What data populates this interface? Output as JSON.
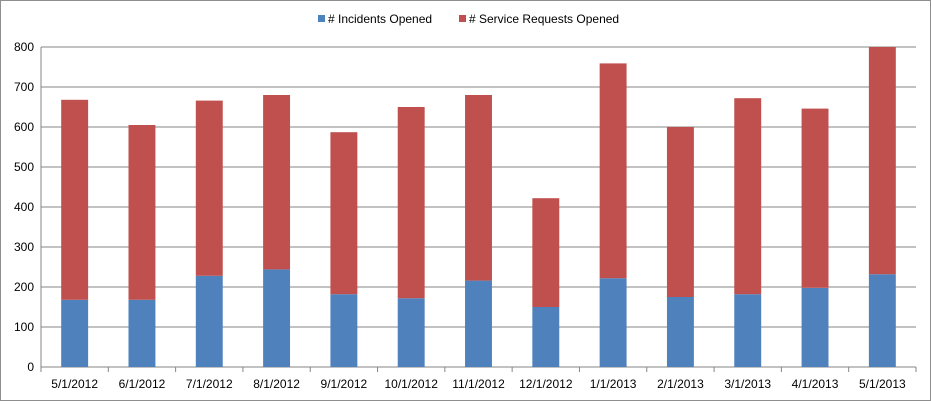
{
  "chart_data": {
    "type": "bar",
    "stacked": true,
    "categories": [
      "5/1/2012",
      "6/1/2012",
      "7/1/2012",
      "8/1/2012",
      "9/1/2012",
      "10/1/2012",
      "11/1/2012",
      "12/1/2012",
      "1/1/2013",
      "2/1/2013",
      "3/1/2013",
      "4/1/2013",
      "5/1/2013"
    ],
    "series": [
      {
        "name": "# Incidents Opened",
        "color": "#4f81bd",
        "values": [
          168,
          168,
          228,
          244,
          182,
          172,
          216,
          150,
          222,
          175,
          182,
          198,
          232
        ]
      },
      {
        "name": "# Service Requests Opened",
        "color": "#c0504d",
        "values": [
          500,
          437,
          438,
          436,
          405,
          478,
          464,
          272,
          537,
          425,
          490,
          448,
          568
        ]
      }
    ],
    "ylim": [
      0,
      800
    ],
    "yticks": [
      0,
      100,
      200,
      300,
      400,
      500,
      600,
      700,
      800
    ],
    "grid": true,
    "legend": "top-center",
    "title": "",
    "xlabel": "",
    "ylabel": ""
  }
}
